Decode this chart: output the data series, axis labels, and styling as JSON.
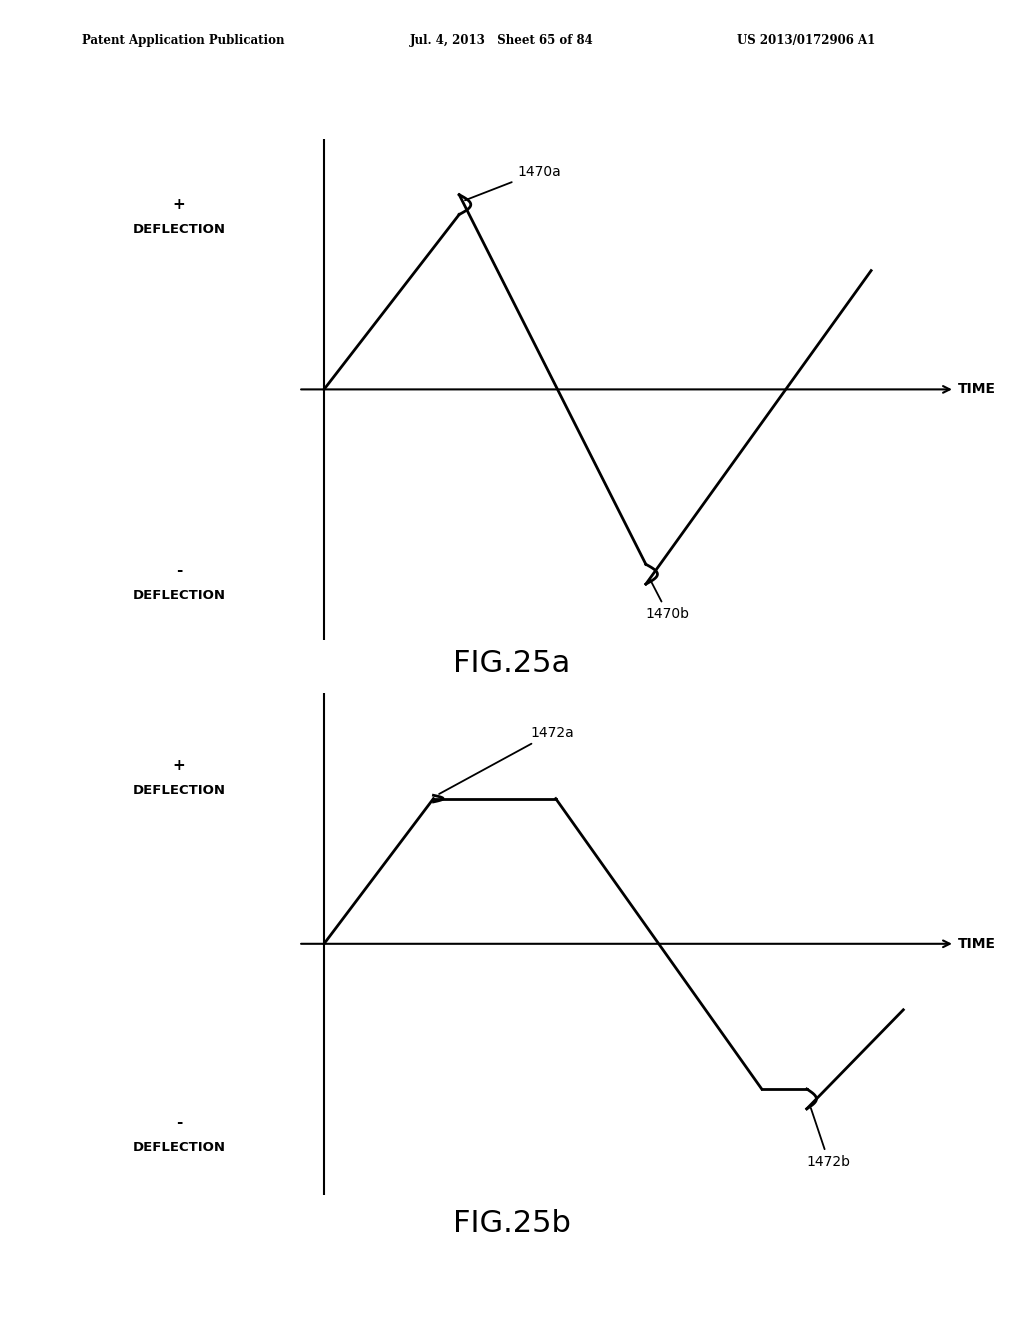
{
  "background_color": "#ffffff",
  "header_left": "Patent Application Publication",
  "header_mid": "Jul. 4, 2013   Sheet 65 of 84",
  "header_right": "US 2013/0172906 A1",
  "fig25a": {
    "title": "FIG.25a",
    "label_1470a": "1470a",
    "label_1470b": "1470b",
    "label_time": "TIME",
    "label_plus": "+",
    "label_deflection_plus": "DEFLECTION",
    "label_minus": "-",
    "label_deflection_minus": "DEFLECTION"
  },
  "fig25b": {
    "title": "FIG.25b",
    "label_1472a": "1472a",
    "label_1472b": "1472b",
    "label_time": "TIME",
    "label_plus": "+",
    "label_deflection_plus": "DEFLECTION",
    "label_minus": "-",
    "label_deflection_minus": "DEFLECTION"
  }
}
